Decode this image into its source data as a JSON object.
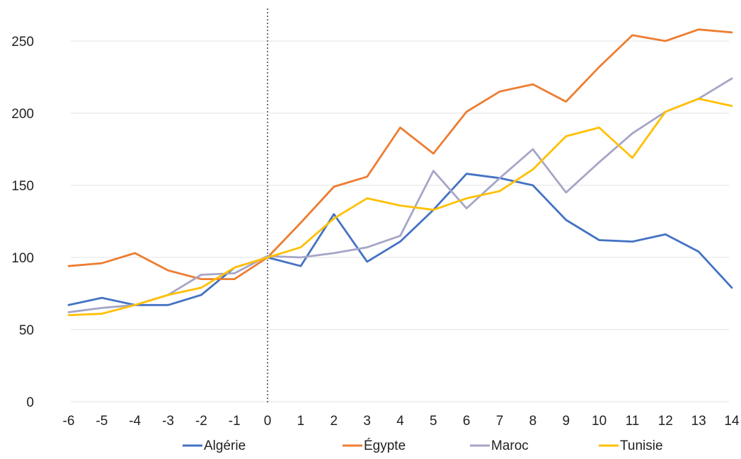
{
  "chart_data": {
    "type": "line",
    "title": "",
    "xlabel": "",
    "ylabel": "",
    "x": [
      -6,
      -5,
      -4,
      -3,
      -2,
      -1,
      0,
      1,
      2,
      3,
      4,
      5,
      6,
      7,
      8,
      9,
      10,
      11,
      12,
      13,
      14
    ],
    "x_tick_labels": [
      "-6",
      "-5",
      "-4",
      "-3",
      "-2",
      "-1",
      "0",
      "1",
      "2",
      "3",
      "4",
      "5",
      "6",
      "7",
      "8",
      "9",
      "10",
      "11",
      "12",
      "13",
      "14"
    ],
    "ylim": [
      0,
      250
    ],
    "y_ticks": [
      0,
      50,
      100,
      150,
      200,
      250
    ],
    "y_tick_labels": [
      "0",
      "50",
      "100",
      "150",
      "200",
      "250"
    ],
    "grid": true,
    "reference_line_x": 0,
    "legend_position": "bottom",
    "series": [
      {
        "name": "Algérie",
        "color": "#4472C4",
        "values": [
          67,
          72,
          67,
          67,
          74,
          93,
          100,
          94,
          130,
          97,
          111,
          133,
          158,
          155,
          150,
          126,
          112,
          111,
          116,
          104,
          79
        ]
      },
      {
        "name": "Égypte",
        "color": "#ED7D31",
        "values": [
          94,
          96,
          103,
          91,
          85,
          85,
          100,
          124,
          149,
          156,
          190,
          172,
          201,
          215,
          220,
          208,
          232,
          254,
          250,
          258,
          256
        ]
      },
      {
        "name": "Maroc",
        "color": "#A5A5C8",
        "values": [
          62,
          65,
          67,
          74,
          88,
          89,
          101,
          100,
          103,
          107,
          115,
          160,
          134,
          155,
          175,
          145,
          166,
          186,
          201,
          210,
          224
        ]
      },
      {
        "name": "Tunisie",
        "color": "#FFC000",
        "values": [
          60,
          61,
          67,
          74,
          79,
          93,
          100,
          107,
          127,
          141,
          136,
          133,
          141,
          146,
          161,
          184,
          190,
          169,
          201,
          210,
          205
        ]
      }
    ]
  }
}
